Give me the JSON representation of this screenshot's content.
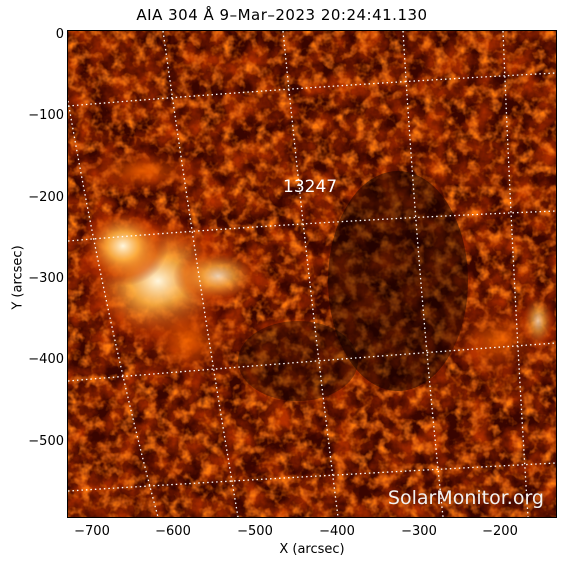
{
  "title": "AIA 304 Å  9–Mar–2023 20:24:41.130",
  "active_region": "13247",
  "watermark": "SolarMonitor.org",
  "axes": {
    "xlabel": "X (arcsec)",
    "ylabel": "Y (arcsec)",
    "xticks": [
      "−700",
      "−600",
      "−500",
      "−400",
      "−300",
      "−200"
    ],
    "yticks": [
      "0",
      "−100",
      "−200",
      "−300",
      "−400",
      "−500"
    ],
    "xlim": [
      -730,
      -130
    ],
    "ylim": [
      -600,
      0
    ]
  },
  "colors": {
    "background": "#0a0000",
    "dim": "#5a0a00",
    "mid": "#b83200",
    "bright": "#ff8a1a",
    "hot": "#fff3d0",
    "grid": "#ffffff"
  }
}
